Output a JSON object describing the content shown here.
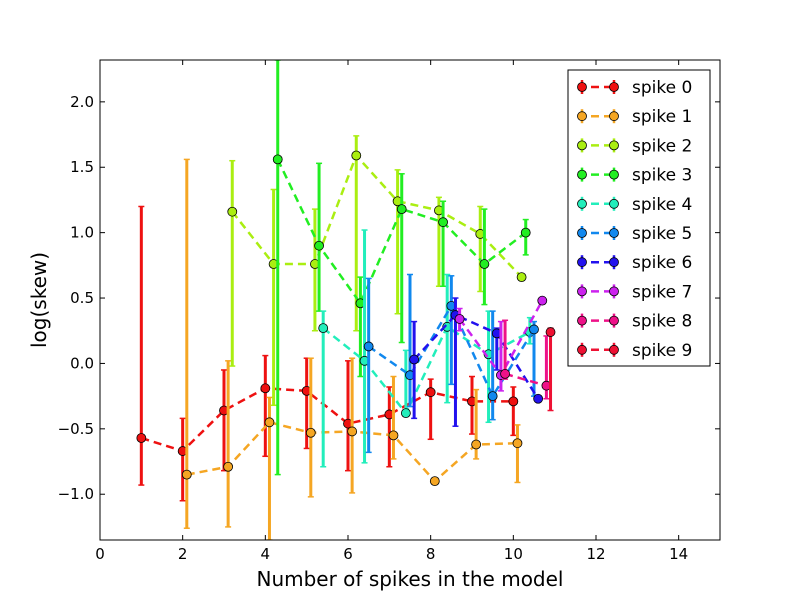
{
  "chart_data": {
    "type": "line",
    "title": "",
    "xlabel": "Number of spikes in the model",
    "ylabel": "log(skew)",
    "xlim": [
      0,
      15
    ],
    "ylim": [
      -1.35,
      2.32
    ],
    "xticks": [
      0,
      2,
      4,
      6,
      8,
      10,
      12,
      14
    ],
    "yticks": [
      -1.0,
      -0.5,
      0.0,
      0.5,
      1.0,
      1.5,
      2.0
    ],
    "xtick_labels": [
      "0",
      "2",
      "4",
      "6",
      "8",
      "10",
      "12",
      "14"
    ],
    "ytick_labels": [
      "−1.0",
      "−0.5",
      "0.0",
      "0.5",
      "1.0",
      "1.5",
      "2.0"
    ],
    "grid": false,
    "legend_position": "top-right",
    "series": [
      {
        "name": "spike 0",
        "color": "#ee1111",
        "x": [
          1.0,
          2.0,
          3.0,
          4.0,
          5.0,
          6.0,
          7.0,
          8.0,
          9.0,
          10.0
        ],
        "y": [
          -0.57,
          -0.67,
          -0.36,
          -0.19,
          -0.21,
          -0.46,
          -0.39,
          -0.22,
          -0.29,
          -0.29
        ],
        "err_low": [
          -0.93,
          -1.05,
          -0.82,
          -0.71,
          -0.65,
          -0.82,
          -0.79,
          -0.58,
          -0.54,
          -0.55
        ],
        "err_high": [
          1.2,
          -0.42,
          -0.05,
          0.06,
          0.04,
          0.02,
          -0.18,
          -0.12,
          -0.1,
          -0.18
        ]
      },
      {
        "name": "spike 1",
        "color": "#f5a623",
        "x": [
          2.1,
          3.1,
          4.1,
          5.1,
          6.1,
          7.1,
          8.1,
          9.1,
          10.1
        ],
        "y": [
          -0.85,
          -0.79,
          -0.45,
          -0.53,
          -0.52,
          -0.55,
          -0.9,
          -0.62,
          -0.61
        ],
        "err_low": [
          -1.26,
          -1.25,
          -1.35,
          -1.02,
          -0.99,
          -0.73,
          -0.9,
          -0.73,
          -0.91
        ],
        "err_high": [
          1.56,
          0.02,
          -0.26,
          0.04,
          0.04,
          -0.1,
          -0.9,
          -0.2,
          -0.47
        ]
      },
      {
        "name": "spike 2",
        "color": "#aaee11",
        "x": [
          3.2,
          4.2,
          5.2,
          6.2,
          7.2,
          8.2,
          9.2,
          10.2
        ],
        "y": [
          1.16,
          0.76,
          0.76,
          1.59,
          1.24,
          1.17,
          0.99,
          0.66
        ],
        "err_low": [
          -0.02,
          -0.32,
          0.25,
          0.25,
          0.38,
          0.59,
          0.55,
          0.66
        ],
        "err_high": [
          1.55,
          1.33,
          1.18,
          1.74,
          1.48,
          1.27,
          1.2,
          0.66
        ]
      },
      {
        "name": "spike 3",
        "color": "#22ee22",
        "x": [
          4.3,
          5.3,
          6.3,
          7.3,
          8.3,
          9.3,
          10.3
        ],
        "y": [
          1.56,
          0.9,
          0.46,
          1.18,
          1.08,
          0.76,
          1.0
        ],
        "err_low": [
          -0.85,
          0.4,
          -0.1,
          0.16,
          0.59,
          0.45,
          0.83
        ],
        "err_high": [
          2.32,
          1.53,
          0.66,
          1.45,
          1.24,
          1.18,
          1.1
        ]
      },
      {
        "name": "spike 4",
        "color": "#22eebb",
        "x": [
          5.4,
          6.4,
          7.4,
          8.4,
          9.4,
          10.4
        ],
        "y": [
          0.27,
          0.02,
          -0.38,
          0.28,
          0.07,
          0.24
        ],
        "err_low": [
          -0.79,
          -0.76,
          -0.38,
          -0.3,
          -0.45,
          0.15
        ],
        "err_high": [
          0.4,
          1.02,
          0.1,
          0.68,
          0.4,
          0.35
        ]
      },
      {
        "name": "spike 5",
        "color": "#1188ee",
        "x": [
          6.5,
          7.5,
          8.5,
          9.5,
          10.5
        ],
        "y": [
          0.13,
          -0.09,
          0.44,
          -0.25,
          0.26
        ],
        "err_low": [
          -0.68,
          -0.33,
          -0.16,
          -0.43,
          -0.25
        ],
        "err_high": [
          0.65,
          0.68,
          0.67,
          0.4,
          0.32
        ]
      },
      {
        "name": "spike 6",
        "color": "#2211ee",
        "x": [
          7.6,
          8.6,
          9.6,
          10.6
        ],
        "y": [
          0.03,
          0.37,
          0.23,
          -0.27
        ],
        "err_low": [
          -0.42,
          -0.48,
          -0.05,
          -0.27
        ],
        "err_high": [
          0.32,
          0.5,
          0.27,
          -0.27
        ]
      },
      {
        "name": "spike 7",
        "color": "#cc22ee",
        "x": [
          8.7,
          9.7,
          10.7
        ],
        "y": [
          0.34,
          -0.09,
          0.48
        ],
        "err_low": [
          0.25,
          -0.21,
          0.48
        ],
        "err_high": [
          0.42,
          0.32,
          0.48
        ]
      },
      {
        "name": "spike 8",
        "color": "#ee1188",
        "x": [
          9.8,
          10.8
        ],
        "y": [
          -0.08,
          -0.17
        ],
        "err_low": [
          -0.12,
          -0.27
        ],
        "err_high": [
          0.33,
          0.21
        ]
      },
      {
        "name": "spike 9",
        "color": "#ee1133",
        "x": [
          10.9
        ],
        "y": [
          0.24
        ],
        "err_low": [
          -0.36
        ],
        "err_high": [
          0.27
        ]
      }
    ]
  }
}
